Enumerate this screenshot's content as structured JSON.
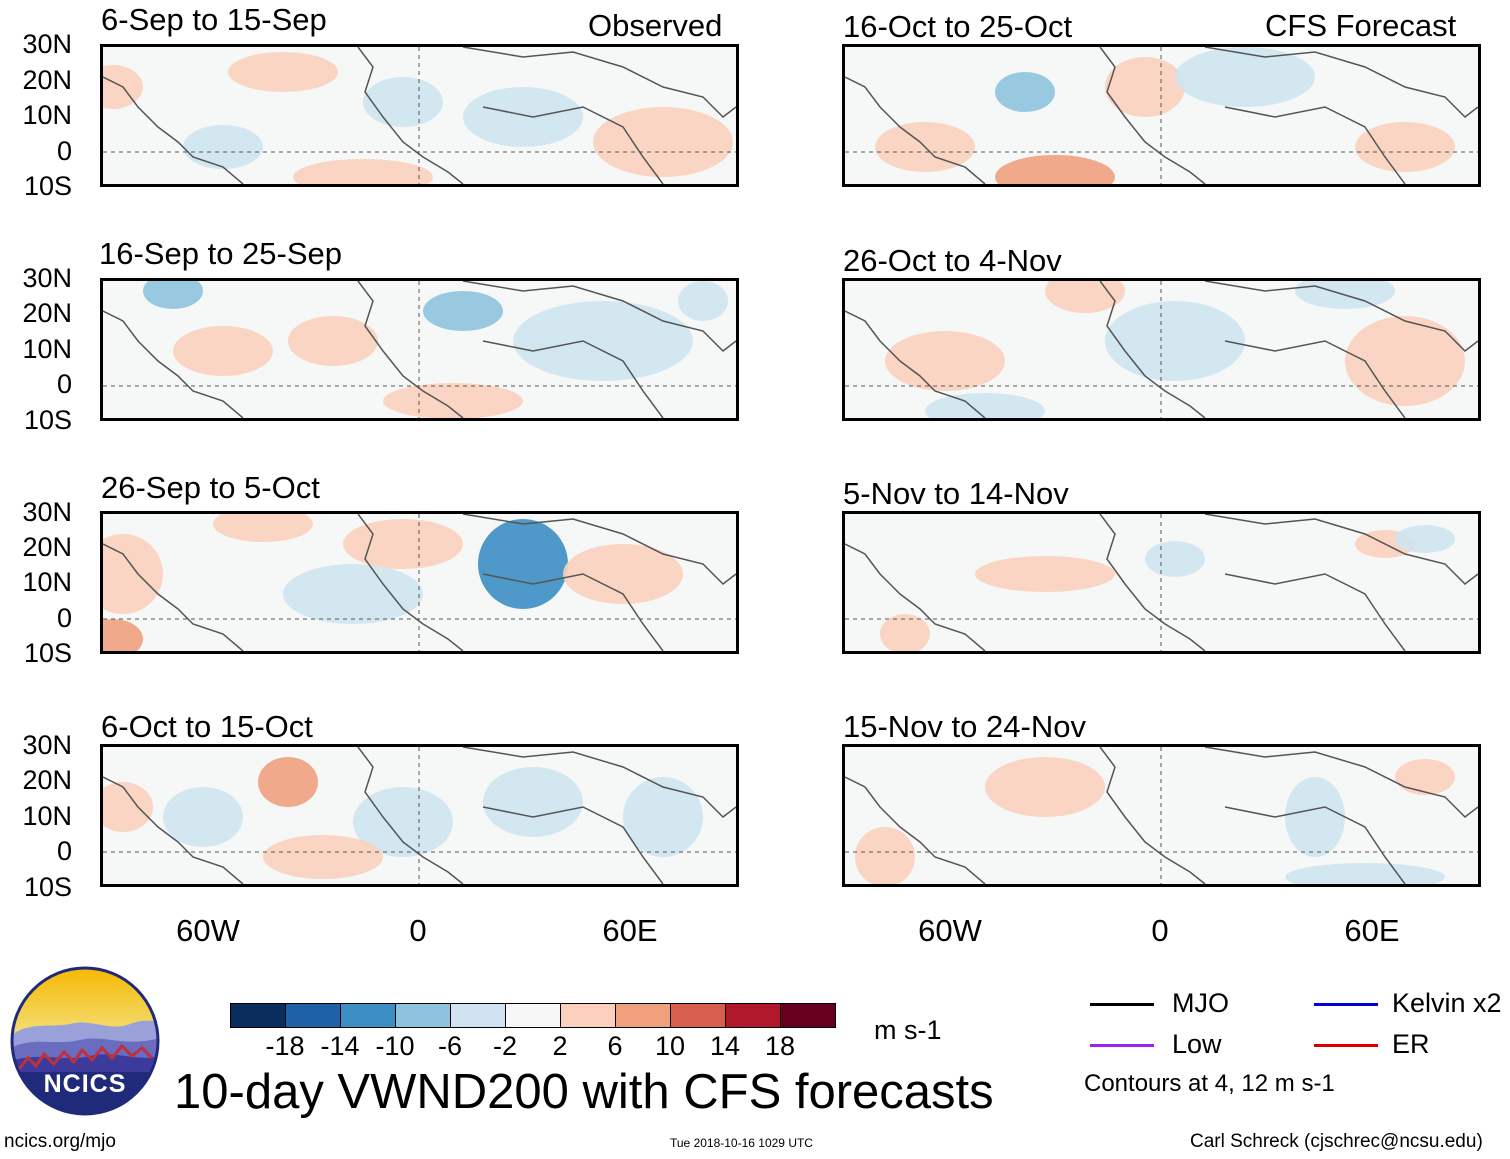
{
  "left_panels": [
    {
      "title": "6-Sep to 15-Sep",
      "tag": "Observed"
    },
    {
      "title": "16-Sep to 25-Sep",
      "tag": ""
    },
    {
      "title": "26-Sep to 5-Oct",
      "tag": ""
    },
    {
      "title": "6-Oct to 15-Oct",
      "tag": ""
    }
  ],
  "right_panels": [
    {
      "title": "16-Oct to 25-Oct",
      "tag": "CFS Forecast"
    },
    {
      "title": "26-Oct to 4-Nov",
      "tag": ""
    },
    {
      "title": "5-Nov to 14-Nov",
      "tag": ""
    },
    {
      "title": "15-Nov to 24-Nov",
      "tag": ""
    }
  ],
  "lat_labels": [
    "30N",
    "20N",
    "10N",
    "0",
    "10S"
  ],
  "lon_labels": [
    "60W",
    "0",
    "60E"
  ],
  "colorbar": {
    "ticks": [
      "-18",
      "-14",
      "-10",
      "-6",
      "-2",
      "2",
      "6",
      "10",
      "14",
      "18"
    ],
    "colors": [
      "#0b2d5e",
      "#1f61a8",
      "#3d8ec4",
      "#8ec3de",
      "#cfe4f0",
      "#f7f7f7",
      "#fbd0bd",
      "#f1a07e",
      "#d6604d",
      "#b2182b",
      "#67001f"
    ],
    "unit": "m s-1"
  },
  "legend": {
    "items": [
      {
        "label": "MJO",
        "color": "#000000"
      },
      {
        "label": "Kelvin x2",
        "color": "#0000dd"
      },
      {
        "label": "Low",
        "color": "#a020f0"
      },
      {
        "label": "ER",
        "color": "#dd0000"
      }
    ],
    "note": "Contours at 4, 12 m s-1"
  },
  "logo_text": "NCICS",
  "main_title": "10-day VWND200 with CFS forecasts",
  "footer": {
    "website": "ncics.org/mjo",
    "timestamp": "Tue 2018-10-16 1029 UTC",
    "credit": "Carl Schreck (cjschrec@ncsu.edu)"
  }
}
